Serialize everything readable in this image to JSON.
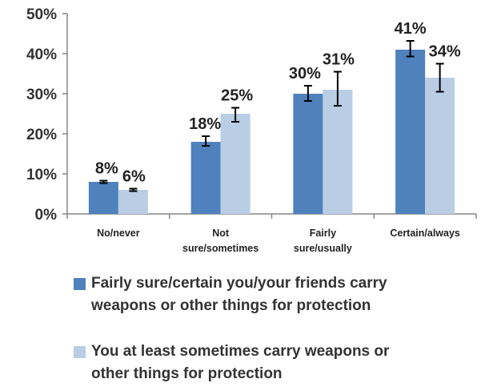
{
  "chart_data": {
    "type": "bar",
    "categories": [
      [
        "No/never"
      ],
      [
        "Not",
        "sure/sometimes"
      ],
      [
        "Fairly",
        "sure/usually"
      ],
      [
        "Certain/always"
      ]
    ],
    "series": [
      {
        "name": "Fairly sure/certain you/your friends carry weapons or other things for protection",
        "values": [
          8,
          18,
          30,
          41
        ],
        "error_low": [
          7.7,
          17.0,
          28.2,
          39.3
        ],
        "error_high": [
          8.3,
          19.4,
          32.0,
          43.2
        ],
        "labels": [
          "8%",
          "18%",
          "30%",
          "41%"
        ],
        "color": "#4F81BD"
      },
      {
        "name": "You at least sometimes carry weapons or other things for protection",
        "values": [
          6,
          25,
          31,
          34
        ],
        "error_low": [
          5.7,
          23.0,
          27.0,
          30.5
        ],
        "error_high": [
          6.3,
          26.5,
          35.5,
          37.5
        ],
        "labels": [
          "6%",
          "25%",
          "31%",
          "34%"
        ],
        "color": "#B9CDE5"
      }
    ],
    "y_ticks": [
      "0%",
      "10%",
      "20%",
      "30%",
      "40%",
      "50%"
    ],
    "ylim": [
      0,
      50
    ],
    "grid": false,
    "legend_position": "bottom"
  },
  "legend": {
    "item1": [
      "Fairly sure/certain you/your friends carry",
      "weapons or other things for protection"
    ],
    "item2": [
      "You at least sometimes carry weapons or",
      "other things for protection"
    ]
  }
}
